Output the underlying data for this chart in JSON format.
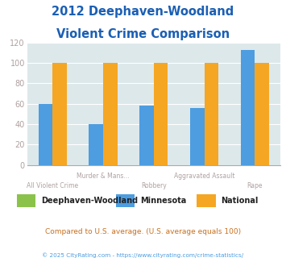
{
  "title_line1": "2012 Deephaven-Woodland",
  "title_line2": "Violent Crime Comparison",
  "cat_top": [
    "",
    "Murder & Mans...",
    "",
    "Aggravated Assault",
    ""
  ],
  "cat_bot": [
    "All Violent Crime",
    "",
    "Robbery",
    "",
    "Rape"
  ],
  "deephaven": [
    0,
    0,
    0,
    0,
    0
  ],
  "minnesota": [
    60,
    40,
    58,
    56,
    113
  ],
  "national": [
    100,
    100,
    100,
    100,
    100
  ],
  "color_deephaven": "#8bc34a",
  "color_minnesota": "#4d9de0",
  "color_national": "#f5a623",
  "ylim": [
    0,
    120
  ],
  "yticks": [
    0,
    20,
    40,
    60,
    80,
    100,
    120
  ],
  "background_color": "#dde8ea",
  "title_color": "#1a5fb4",
  "axis_label_color": "#b0a0a0",
  "legend_label_color": "#222222",
  "footer1": "Compared to U.S. average. (U.S. average equals 100)",
  "footer2": "© 2025 CityRating.com - https://www.cityrating.com/crime-statistics/",
  "footer1_color": "#c87020",
  "footer2_color": "#4d9de0"
}
